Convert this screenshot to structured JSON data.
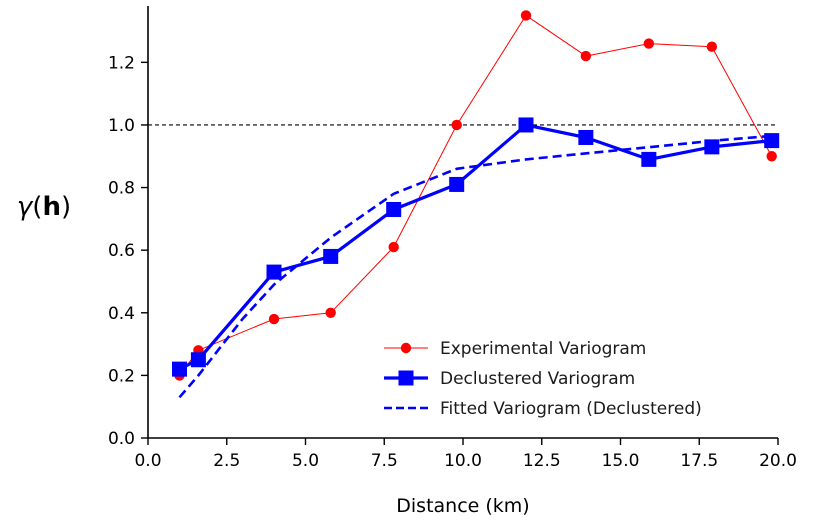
{
  "chart_data": {
    "type": "line",
    "xlabel": "Distance (km)",
    "ylabel": "γ(h)",
    "ylabel_parts": {
      "prefix": "γ(",
      "bold": "h",
      "suffix": ")"
    },
    "xlim": [
      0,
      20
    ],
    "ylim": [
      0,
      1.38
    ],
    "xticks": [
      0.0,
      2.5,
      5.0,
      7.5,
      10.0,
      12.5,
      15.0,
      17.5,
      20.0
    ],
    "xtick_labels": [
      "0.0",
      "2.5",
      "5.0",
      "7.5",
      "10.0",
      "12.5",
      "15.0",
      "17.5",
      "20.0"
    ],
    "yticks": [
      0.0,
      0.2,
      0.4,
      0.6,
      0.8,
      1.0,
      1.2
    ],
    "ytick_labels": [
      "0.0",
      "0.2",
      "0.4",
      "0.6",
      "0.8",
      "1.0",
      "1.2"
    ],
    "grid": false,
    "legend_position": "lower-right",
    "reference_line": {
      "y": 1.0,
      "style": "dashed",
      "color": "#000000"
    },
    "series": [
      {
        "name": "Experimental Variogram",
        "color": "#ff0000",
        "marker": "circle",
        "linestyle": "solid",
        "x": [
          1.0,
          1.6,
          4.0,
          5.8,
          7.8,
          9.8,
          12.0,
          13.9,
          15.9,
          17.9,
          19.8
        ],
        "y": [
          0.2,
          0.28,
          0.38,
          0.4,
          0.61,
          1.0,
          1.35,
          1.22,
          1.26,
          1.25,
          0.9
        ]
      },
      {
        "name": "Declustered Variogram",
        "color": "#0000ff",
        "marker": "square",
        "linestyle": "solid",
        "x": [
          1.0,
          1.6,
          4.0,
          5.8,
          7.8,
          9.8,
          12.0,
          13.9,
          15.9,
          17.9,
          19.8
        ],
        "y": [
          0.22,
          0.25,
          0.53,
          0.58,
          0.73,
          0.81,
          1.0,
          0.96,
          0.89,
          0.93,
          0.95
        ]
      },
      {
        "name": "Fitted Variogram (Declustered)",
        "color": "#0000ff",
        "marker": "none",
        "linestyle": "dashed",
        "x": [
          1.0,
          1.6,
          3.0,
          4.0,
          5.8,
          7.8,
          9.8,
          12.0,
          14.0,
          16.0,
          18.0,
          19.8
        ],
        "y": [
          0.13,
          0.2,
          0.38,
          0.49,
          0.64,
          0.78,
          0.86,
          0.89,
          0.91,
          0.93,
          0.95,
          0.965
        ]
      }
    ]
  }
}
